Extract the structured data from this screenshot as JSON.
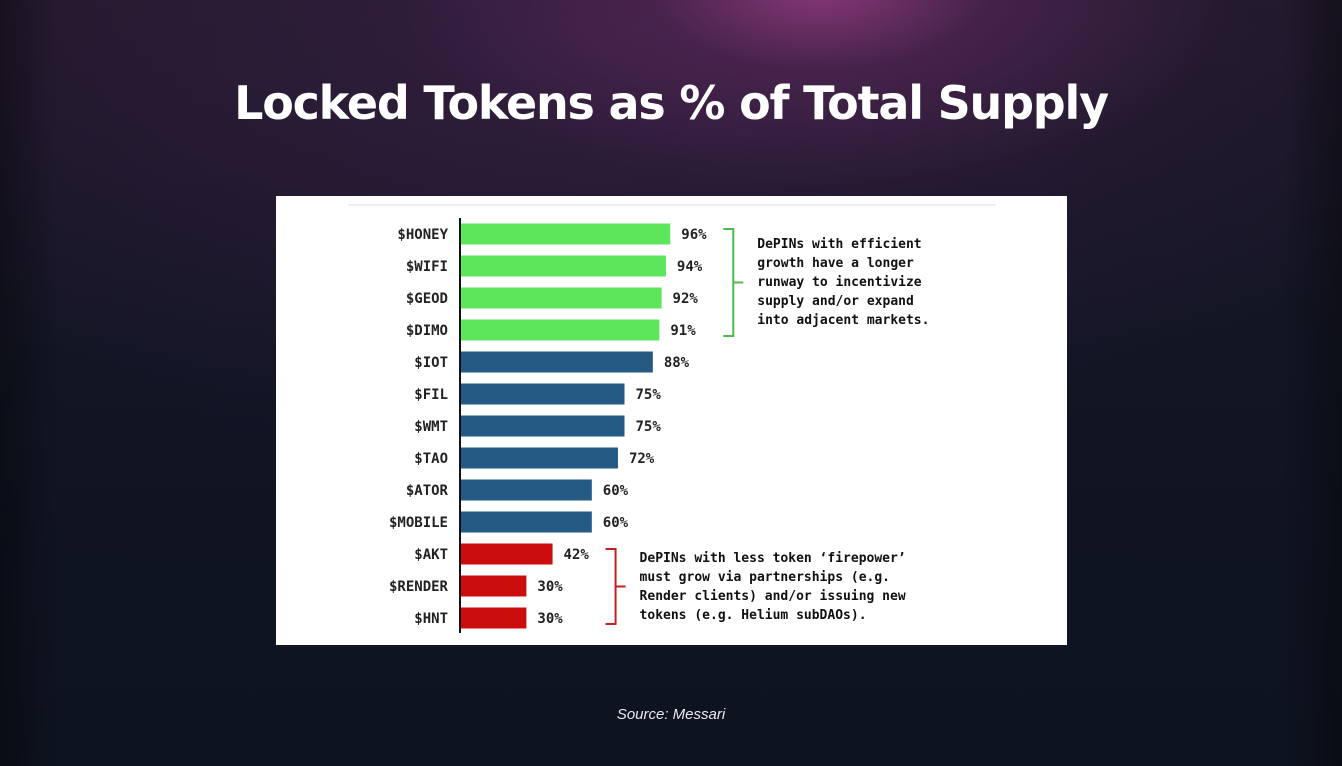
{
  "title": "Locked Tokens as % of Total Supply",
  "source": "Source: Messari",
  "colors": {
    "green": "#5ce65c",
    "blue": "#245a84",
    "red": "#cc0d0d",
    "bracket_green": "#4cbb4c",
    "bracket_red": "#c42020"
  },
  "chart_data": {
    "type": "bar",
    "orientation": "horizontal",
    "categories": [
      "$HONEY",
      "$WIFI",
      "$GEOD",
      "$DIMO",
      "$IOT",
      "$FIL",
      "$WMT",
      "$TAO",
      "$ATOR",
      "$MOBILE",
      "$AKT",
      "$RENDER",
      "$HNT"
    ],
    "values": [
      96,
      94,
      92,
      91,
      88,
      75,
      75,
      72,
      60,
      60,
      42,
      30,
      30
    ],
    "value_labels": [
      "96%",
      "94%",
      "92%",
      "91%",
      "88%",
      "75%",
      "75%",
      "72%",
      "60%",
      "60%",
      "42%",
      "30%",
      "30%"
    ],
    "groups": [
      "green",
      "green",
      "green",
      "green",
      "blue",
      "blue",
      "blue",
      "blue",
      "blue",
      "blue",
      "red",
      "red",
      "red"
    ],
    "xlim": [
      0,
      100
    ],
    "grid": false,
    "annotations": [
      {
        "text": "DePINs with efficient\ngrowth have a longer\nrunway to incentivize\nsupply and/or expand\ninto adjacent markets.",
        "bracket": "green",
        "first_bar": 0,
        "last_bar": 3
      },
      {
        "text": "DePINs with less token ‘firepower’\nmust grow via partnerships (e.g.\nRender clients) and/or issuing new\ntokens (e.g. Helium subDAOs).",
        "bracket": "red",
        "first_bar": 10,
        "last_bar": 12
      }
    ]
  }
}
